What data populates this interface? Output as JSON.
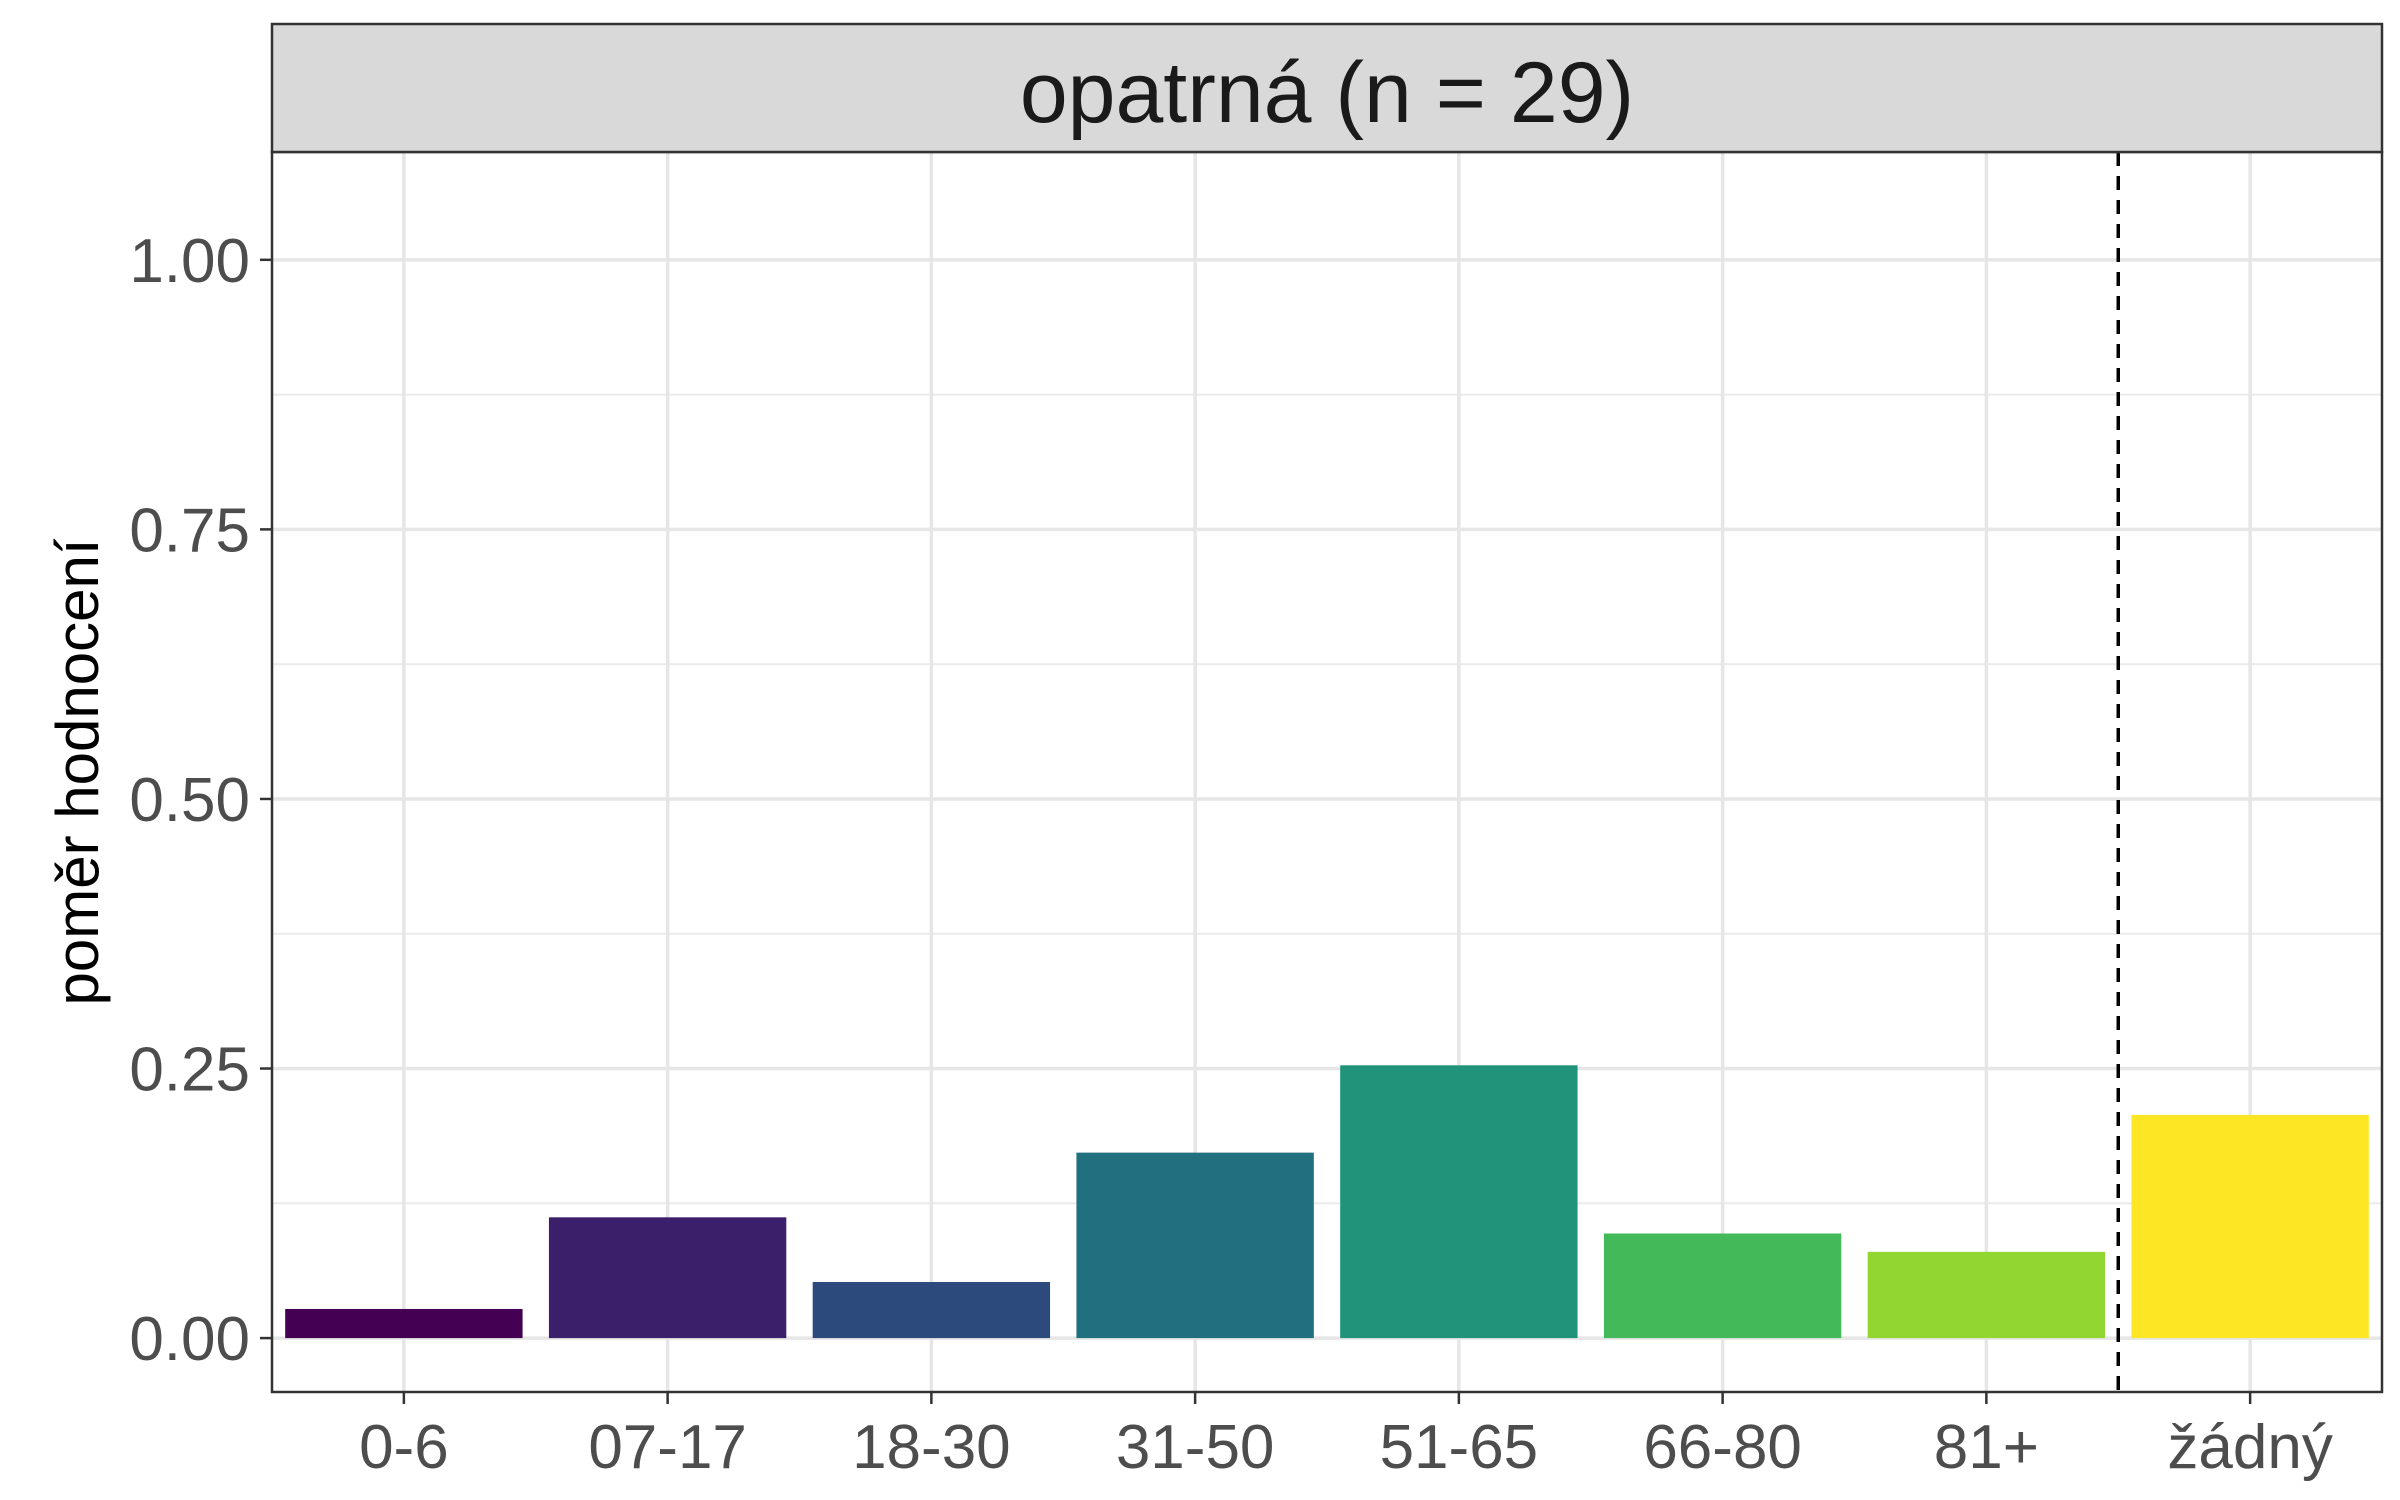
{
  "chart_data": {
    "type": "bar",
    "facet_title": "opatrná (n = 29)",
    "xlabel": "",
    "ylabel": "poměr hodnocení",
    "categories": [
      "0-6",
      "07-17",
      "18-30",
      "31-50",
      "51-65",
      "66-80",
      "81+",
      "žádný"
    ],
    "values": [
      0.027,
      0.112,
      0.052,
      0.172,
      0.253,
      0.097,
      0.08,
      0.207
    ],
    "colors": [
      "#440154",
      "#3B1F6B",
      "#2C4A7C",
      "#21707F",
      "#21937A",
      "#44B95A",
      "#92D631",
      "#FDE725"
    ],
    "ylim": [
      -0.05,
      1.1
    ],
    "yticks": [
      0.0,
      0.25,
      0.5,
      0.75,
      1.0
    ],
    "ytick_labels": [
      "0.00",
      "0.25",
      "0.50",
      "0.75",
      "1.00"
    ],
    "reference_line": {
      "after_category": "81+",
      "style": "dashed",
      "color": "#000000"
    },
    "grid": true,
    "legend": "none",
    "panel_border": "#333333",
    "strip_fill": "#d9d9d9"
  }
}
